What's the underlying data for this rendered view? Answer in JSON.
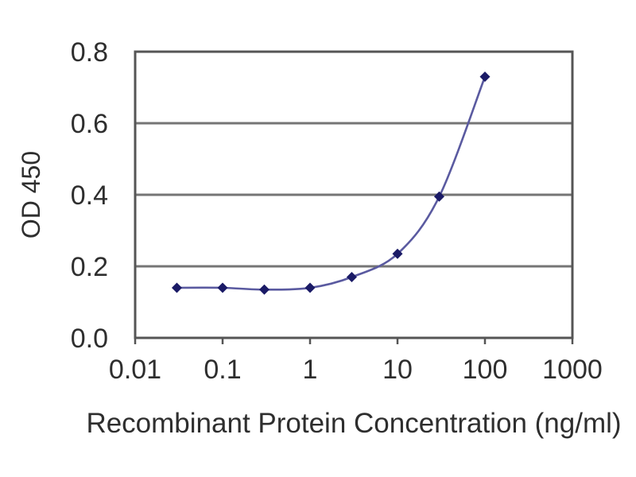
{
  "chart_data": {
    "type": "line",
    "title": "",
    "xlabel": "Recombinant Protein Concentration (ng/ml)",
    "ylabel": "OD 450",
    "x_scale": "log",
    "xlim": [
      0.01,
      1000
    ],
    "ylim": [
      0.0,
      0.8
    ],
    "grid": "horizontal",
    "legend": "none",
    "x_tick_values": [
      0.01,
      0.1,
      1,
      10,
      100,
      1000
    ],
    "x_tick_labels": [
      "0.01",
      "0.1",
      "1",
      "10",
      "100",
      "1000"
    ],
    "y_tick_values": [
      0.0,
      0.2,
      0.4,
      0.6,
      0.8
    ],
    "y_tick_labels": [
      "0.0",
      "0.2",
      "0.4",
      "0.6",
      "0.8"
    ],
    "series": [
      {
        "name": "OD 450",
        "marker": "diamond",
        "x": [
          0.03,
          0.1,
          0.3,
          1,
          3,
          10,
          30,
          100
        ],
        "y": [
          0.14,
          0.14,
          0.135,
          0.14,
          0.17,
          0.235,
          0.395,
          0.73
        ]
      }
    ],
    "colors": {
      "line": "#5a5aa0",
      "marker": "#1a1a66",
      "grid": "#757575",
      "frame": "#555555",
      "text": "#2e2e2e",
      "background": "#ffffff"
    }
  }
}
